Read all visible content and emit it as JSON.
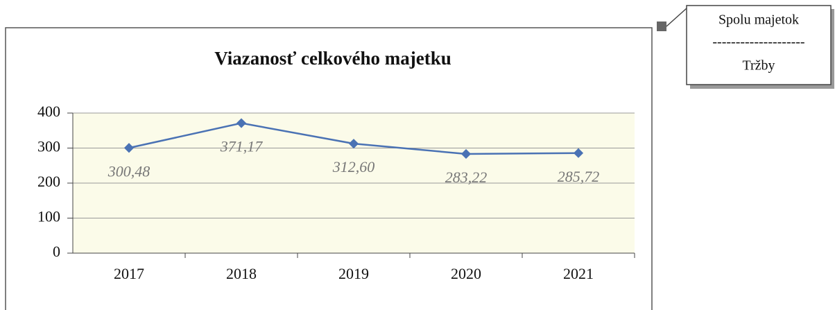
{
  "chart_data": {
    "type": "line",
    "title": "Viazanosť celkového majetku",
    "categories": [
      "2017",
      "2018",
      "2019",
      "2020",
      "2021"
    ],
    "series": [
      {
        "name": null,
        "color": "#4a72b4",
        "values": [
          300.48,
          371.17,
          312.6,
          283.22,
          285.72
        ],
        "value_labels": [
          "300,48",
          "371,17",
          "312,60",
          "283,22",
          "285,72"
        ]
      }
    ],
    "ylim": [
      0,
      400
    ],
    "yticks": [
      0,
      100,
      200,
      300,
      400
    ],
    "grid": true,
    "annotation": [
      "Spolu majetok",
      "--------------------",
      "Tržby"
    ]
  }
}
